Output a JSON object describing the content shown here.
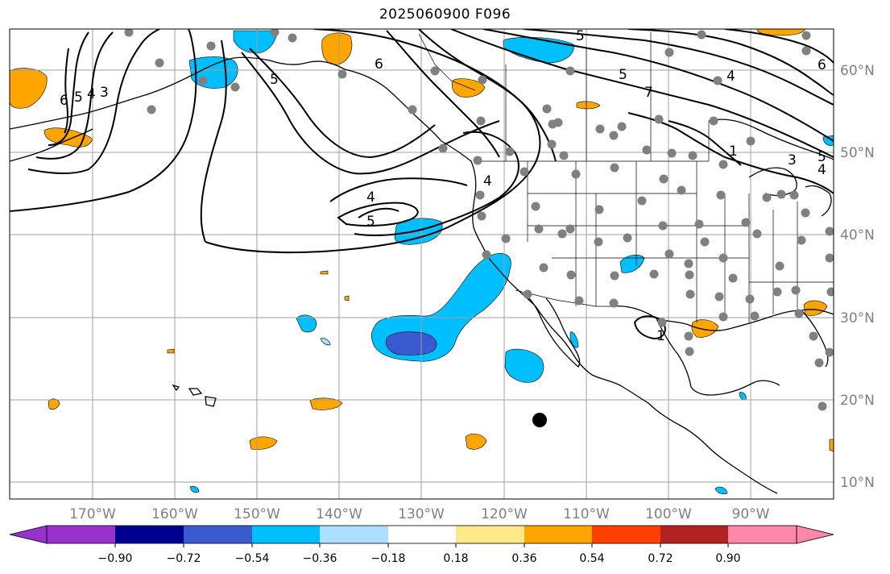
{
  "title": "2025060900 F096",
  "map": {
    "lon_ticks": [
      "170°W",
      "160°W",
      "150°W",
      "140°W",
      "130°W",
      "120°W",
      "110°W",
      "100°W",
      "90°W"
    ],
    "lat_ticks": [
      "60°N",
      "50°N",
      "40°N",
      "30°N",
      "20°N",
      "10°N"
    ],
    "contour_labels": [
      "6",
      "5",
      "4",
      "3",
      "5",
      "6",
      "5",
      "4",
      "4",
      "5",
      "5",
      "4",
      "7",
      "6",
      "5",
      "4",
      "3",
      "1",
      "1"
    ],
    "colorbar": {
      "ticks": [
        "−0.90",
        "−0.72",
        "−0.54",
        "−0.36",
        "−0.18",
        "0.18",
        "0.36",
        "0.54",
        "0.72",
        "0.90"
      ],
      "colors": [
        "#9932CC",
        "#000090",
        "#3A5BCF",
        "#00BFFF",
        "#ADDFFF",
        "#FFFFFF",
        "#FFE98A",
        "#FFA500",
        "#FF3F00",
        "#B22222",
        "#FF88AA"
      ]
    },
    "legend_colors": {
      "strong_negative": "#3A5BCF",
      "negative": "#00BFFF",
      "weak_negative": "#ADDFFF",
      "positive": "#FFA500",
      "station": "#808080",
      "marker": "#000000"
    }
  }
}
